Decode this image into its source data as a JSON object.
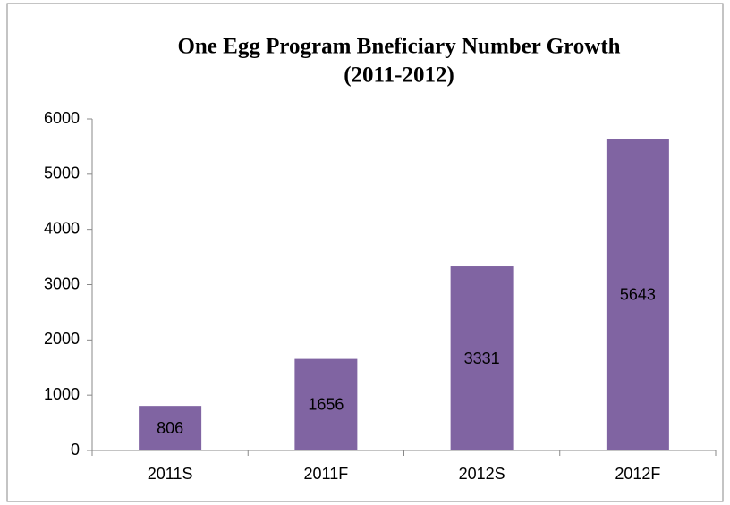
{
  "chart_data": {
    "type": "bar",
    "title": [
      "One Egg Program Bneficiary Number Growth",
      "(2011-2012)"
    ],
    "categories": [
      "2011S",
      "2011F",
      "2012S",
      "2012F"
    ],
    "values": [
      806,
      1656,
      3331,
      5643
    ],
    "color": "#8064a2",
    "ylim": [
      0,
      6000
    ],
    "yticks": [
      0,
      1000,
      2000,
      3000,
      4000,
      5000,
      6000
    ],
    "grid": false
  }
}
